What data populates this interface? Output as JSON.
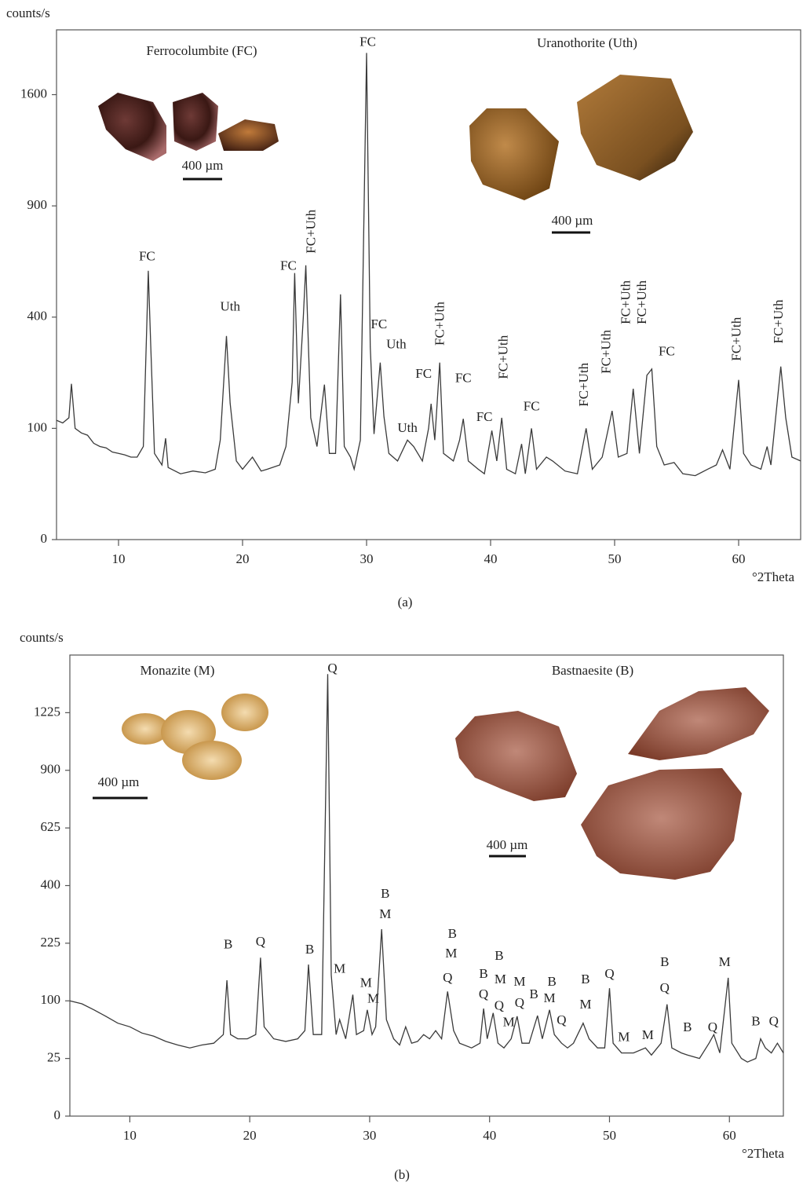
{
  "chart_data": [
    {
      "type": "line",
      "scale": "sqrt",
      "color": "#3a3a3a",
      "ylabel": "counts/s",
      "xlabel": "°2Theta",
      "caption": "(a)",
      "xlim": [
        5,
        65
      ],
      "ylim": [
        0,
        2100
      ],
      "xticks": [
        10,
        20,
        30,
        40,
        50,
        60
      ],
      "yticks": [
        0,
        100,
        400,
        900,
        1600
      ],
      "insets": [
        {
          "title": "Ferrocolumbite (FC)",
          "scale": "400 µm"
        },
        {
          "title": "Uranothorite (Uth)",
          "scale": "400 µm"
        }
      ],
      "x": [
        5,
        5.5,
        6,
        6.2,
        6.5,
        7,
        7.5,
        8,
        8.5,
        9,
        9.5,
        10,
        10.5,
        11,
        11.5,
        12,
        12.3,
        12.4,
        12.6,
        12.9,
        13.5,
        13.8,
        14,
        15,
        16,
        17,
        17.8,
        18.2,
        18.7,
        19,
        19.5,
        20,
        20.8,
        21.5,
        22,
        23,
        23.5,
        24,
        24.2,
        24.5,
        24.9,
        25.1,
        25.5,
        26,
        26.6,
        27,
        27.5,
        27.9,
        28.2,
        28.7,
        29,
        29.5,
        30,
        30.3,
        30.6,
        31.1,
        31.4,
        31.8,
        32.5,
        33.3,
        33.8,
        34.5,
        35,
        35.2,
        35.5,
        35.9,
        36.2,
        37,
        37.5,
        37.8,
        38.2,
        39,
        39.5,
        40.1,
        40.5,
        40.9,
        41.3,
        42,
        42.5,
        42.8,
        43.3,
        43.7,
        44.5,
        45,
        46,
        47,
        47.7,
        48.2,
        49,
        49.8,
        50.3,
        51,
        51.5,
        52,
        52.6,
        53,
        53.4,
        54,
        54.8,
        55.5,
        56.5,
        57.5,
        58.2,
        58.7,
        59.3,
        60,
        60.4,
        61,
        61.8,
        62.3,
        62.6,
        63.4,
        63.8,
        64.3,
        65
      ],
      "values": [
        115,
        110,
        120,
        196,
        100,
        92,
        88,
        75,
        70,
        68,
        62,
        60,
        58,
        55,
        55,
        70,
        400,
        584,
        300,
        60,
        45,
        83,
        42,
        35,
        38,
        36,
        40,
        80,
        335,
        150,
        50,
        40,
        55,
        38,
        40,
        45,
        70,
        200,
        574,
        150,
        400,
        608,
        120,
        70,
        194,
        60,
        60,
        486,
        70,
        55,
        40,
        80,
        1914,
        300,
        90,
        253,
        123,
        60,
        50,
        80,
        70,
        50,
        100,
        149,
        80,
        253,
        60,
        50,
        80,
        118,
        50,
        40,
        35,
        96,
        50,
        120,
        40,
        35,
        74,
        35,
        100,
        40,
        55,
        50,
        38,
        35,
        100,
        40,
        55,
        134,
        55,
        60,
        184,
        60,
        218,
        235,
        70,
        45,
        48,
        35,
        33,
        40,
        45,
        65,
        40,
        206,
        60,
        45,
        40,
        70,
        45,
        242,
        120,
        55,
        50
      ],
      "annotations": [
        {
          "text": "FC",
          "x": 12.3,
          "y": 644
        },
        {
          "text": "Uth",
          "x": 19.0,
          "y": 435
        },
        {
          "text": "FC",
          "x": 23.7,
          "y": 601
        },
        {
          "text": "FC+Uth",
          "x": 25.6,
          "y": 767
        },
        {
          "text": "FC",
          "x": 30.1,
          "y": 1995
        },
        {
          "text": "FC",
          "x": 31.0,
          "y": 372
        },
        {
          "text": "Uth",
          "x": 32.4,
          "y": 305
        },
        {
          "text": "Uth",
          "x": 33.3,
          "y": 99
        },
        {
          "text": "FC",
          "x": 34.6,
          "y": 220
        },
        {
          "text": "FC+Uth",
          "x": 36.0,
          "y": 377
        },
        {
          "text": "FC",
          "x": 37.8,
          "y": 208
        },
        {
          "text": "FC",
          "x": 39.5,
          "y": 120
        },
        {
          "text": "FC+Uth",
          "x": 41.1,
          "y": 269
        },
        {
          "text": "FC",
          "x": 43.3,
          "y": 141
        },
        {
          "text": "FC+Uth",
          "x": 47.6,
          "y": 194
        },
        {
          "text": "FC+Uth",
          "x": 49.4,
          "y": 285
        },
        {
          "text": "FC+Uth",
          "x": 51.0,
          "y": 455
        },
        {
          "text": "FC+Uth",
          "x": 52.3,
          "y": 455
        },
        {
          "text": "FC",
          "x": 54.2,
          "y": 283
        },
        {
          "text": "FC+Uth",
          "x": 59.9,
          "y": 325
        },
        {
          "text": "FC+Uth",
          "x": 63.3,
          "y": 384
        }
      ]
    },
    {
      "type": "line",
      "scale": "sqrt",
      "color": "#3a3a3a",
      "ylabel": "counts/s",
      "xlabel": "°2Theta",
      "caption": "(b)",
      "xlim": [
        5,
        64.5
      ],
      "ylim": [
        0,
        1600
      ],
      "xticks": [
        10,
        20,
        30,
        40,
        50,
        60
      ],
      "yticks": [
        0,
        25,
        100,
        225,
        400,
        625,
        900,
        1225
      ],
      "insets": [
        {
          "title": "Monazite (M)",
          "scale": "400 µm"
        },
        {
          "title": "Bastnaesite (B)",
          "scale": "400 µm"
        }
      ],
      "x": [
        5,
        6,
        7,
        8,
        9,
        10,
        11,
        12,
        13,
        14,
        15,
        16,
        17,
        17.8,
        18.1,
        18.4,
        19,
        19.8,
        20.5,
        20.9,
        21.2,
        22,
        23,
        24,
        24.6,
        24.9,
        25.3,
        26,
        26.5,
        26.8,
        27.2,
        27.5,
        28,
        28.6,
        28.9,
        29.5,
        29.8,
        30.2,
        30.5,
        31,
        31.4,
        32,
        32.5,
        33,
        33.5,
        34,
        34.5,
        35,
        35.5,
        36,
        36.5,
        37,
        37.5,
        38.5,
        39.2,
        39.5,
        39.8,
        40.3,
        40.7,
        41.2,
        41.8,
        42.3,
        42.7,
        43.3,
        44,
        44.4,
        45,
        45.4,
        46,
        46.5,
        47,
        47.8,
        48.3,
        49,
        49.6,
        50,
        50.3,
        51,
        52,
        53,
        53.5,
        54.3,
        54.8,
        55.2,
        56,
        56.5,
        57.5,
        58.3,
        58.7,
        59.2,
        59.9,
        60.2,
        61,
        61.5,
        62.2,
        62.6,
        63,
        63.5,
        64,
        64.5
      ],
      "values": [
        100,
        95,
        85,
        75,
        65,
        60,
        52,
        48,
        42,
        38,
        35,
        38,
        40,
        50,
        139,
        50,
        45,
        45,
        50,
        189,
        60,
        45,
        42,
        45,
        55,
        173,
        50,
        50,
        1471,
        150,
        50,
        70,
        45,
        111,
        50,
        55,
        85,
        50,
        60,
        263,
        70,
        45,
        38,
        60,
        40,
        42,
        50,
        45,
        55,
        45,
        117,
        55,
        40,
        35,
        40,
        87,
        45,
        80,
        40,
        35,
        45,
        75,
        40,
        40,
        76,
        45,
        85,
        50,
        40,
        35,
        40,
        65,
        45,
        35,
        35,
        123,
        40,
        30,
        30,
        35,
        28,
        40,
        94,
        35,
        30,
        28,
        25,
        40,
        50,
        30,
        144,
        40,
        25,
        22,
        25,
        45,
        35,
        30,
        40,
        30
      ],
      "annotations": [
        {
          "text": "B",
          "x": 18.2,
          "y": 219
        },
        {
          "text": "Q",
          "x": 20.9,
          "y": 227
        },
        {
          "text": "B",
          "x": 25.0,
          "y": 207
        },
        {
          "text": "Q",
          "x": 26.9,
          "y": 1502
        },
        {
          "text": "M",
          "x": 27.5,
          "y": 161
        },
        {
          "text": "B",
          "x": 31.3,
          "y": 369
        },
        {
          "text": "M",
          "x": 31.3,
          "y": 304
        },
        {
          "text": "M",
          "x": 29.7,
          "y": 132
        },
        {
          "text": "M",
          "x": 30.3,
          "y": 102
        },
        {
          "text": "B",
          "x": 36.9,
          "y": 248
        },
        {
          "text": "M",
          "x": 36.8,
          "y": 197
        },
        {
          "text": "Q",
          "x": 36.5,
          "y": 142
        },
        {
          "text": "B",
          "x": 39.5,
          "y": 150
        },
        {
          "text": "Q",
          "x": 39.5,
          "y": 110
        },
        {
          "text": "B",
          "x": 40.8,
          "y": 191
        },
        {
          "text": "M",
          "x": 40.9,
          "y": 139
        },
        {
          "text": "Q",
          "x": 40.8,
          "y": 90
        },
        {
          "text": "M",
          "x": 41.6,
          "y": 65
        },
        {
          "text": "M",
          "x": 42.5,
          "y": 134
        },
        {
          "text": "Q",
          "x": 42.5,
          "y": 95
        },
        {
          "text": "B",
          "x": 43.7,
          "y": 110
        },
        {
          "text": "B",
          "x": 45.2,
          "y": 134
        },
        {
          "text": "M",
          "x": 45.0,
          "y": 103
        },
        {
          "text": "Q",
          "x": 46.0,
          "y": 68
        },
        {
          "text": "B",
          "x": 48.0,
          "y": 139
        },
        {
          "text": "M",
          "x": 48.0,
          "y": 92
        },
        {
          "text": "Q",
          "x": 50.0,
          "y": 150
        },
        {
          "text": "M",
          "x": 51.2,
          "y": 46
        },
        {
          "text": "M",
          "x": 53.2,
          "y": 48
        },
        {
          "text": "B",
          "x": 54.6,
          "y": 176
        },
        {
          "text": "Q",
          "x": 54.6,
          "y": 122
        },
        {
          "text": "B",
          "x": 56.5,
          "y": 58
        },
        {
          "text": "Q",
          "x": 58.6,
          "y": 58
        },
        {
          "text": "M",
          "x": 59.6,
          "y": 176
        },
        {
          "text": "B",
          "x": 62.2,
          "y": 66
        },
        {
          "text": "Q",
          "x": 63.7,
          "y": 66
        }
      ]
    }
  ]
}
